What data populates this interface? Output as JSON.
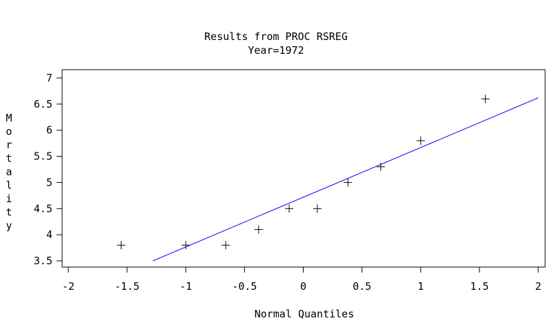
{
  "chart_data": {
    "type": "scatter",
    "title": "Results from PROC RSREG",
    "subtitle": "Year=1972",
    "xlabel": "Normal Quantiles",
    "ylabel": "Mortality",
    "xlim": [
      -2,
      2
    ],
    "ylim": [
      3.5,
      7
    ],
    "xticks": [
      "-2",
      "-1.5",
      "-1",
      "-0.5",
      "0",
      "0.5",
      "1",
      "1.5",
      "2"
    ],
    "yticks": [
      "3.5",
      "4",
      "4.5",
      "5",
      "5.5",
      "6",
      "6.5",
      "7"
    ],
    "grid": false,
    "points": [
      {
        "x": -1.55,
        "y": 3.8
      },
      {
        "x": -1.0,
        "y": 3.8
      },
      {
        "x": -0.66,
        "y": 3.8
      },
      {
        "x": -0.38,
        "y": 4.1
      },
      {
        "x": -0.12,
        "y": 4.5
      },
      {
        "x": 0.12,
        "y": 4.5
      },
      {
        "x": 0.38,
        "y": 5.0
      },
      {
        "x": 0.66,
        "y": 5.3
      },
      {
        "x": 1.0,
        "y": 5.8
      },
      {
        "x": 1.55,
        "y": 6.6
      }
    ],
    "fit_line": {
      "x": [
        -1.28,
        2.0
      ],
      "y": [
        3.5,
        6.62
      ]
    },
    "colors": {
      "points": "#000000",
      "fit_line": "#0000ff"
    }
  }
}
